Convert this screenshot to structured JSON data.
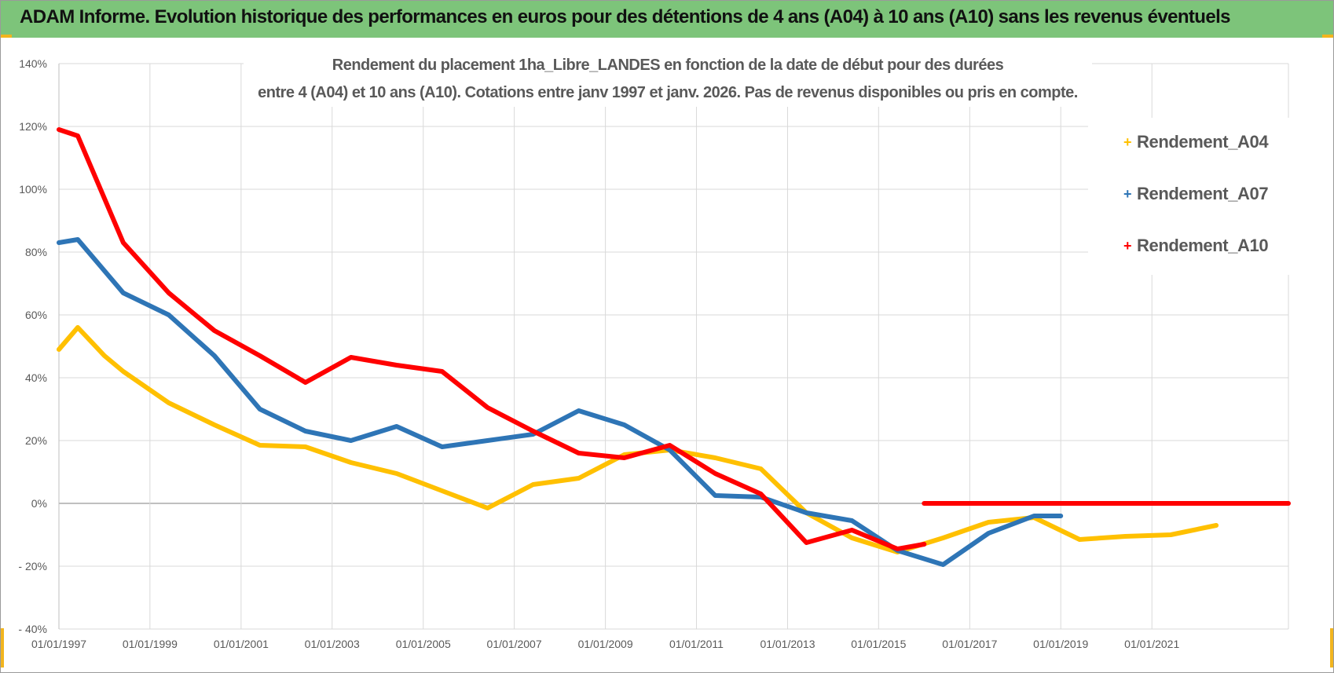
{
  "banner": {
    "title": "ADAM Informe. Evolution historique des performances en euros pour des détentions de 4 ans (A04) à 10 ans (A10) sans les revenus éventuels",
    "color": "#7dc47a"
  },
  "chart_data": {
    "type": "line",
    "title_lines": [
      "Rendement du placement 1ha_Libre_LANDES en fonction de la date de début pour des durées",
      "entre 4 (A04) et 10 ans (A10).  Cotations entre janv 1997 et janv. 2026. Pas de revenus disponibles ou pris en compte."
    ],
    "x_axis": {
      "type": "date",
      "range": [
        "1997-01-01",
        "2024-01-01"
      ],
      "tick_labels": [
        "01/01/1997",
        "01/01/1999",
        "01/01/2001",
        "01/01/2003",
        "01/01/2005",
        "01/01/2007",
        "01/01/2009",
        "01/01/2011",
        "01/01/2013",
        "01/01/2015",
        "01/01/2017",
        "01/01/2019",
        "01/01/2021"
      ]
    },
    "y_axis": {
      "range": [
        -40,
        140
      ],
      "unit": "%",
      "tick_values": [
        -40,
        -20,
        0,
        20,
        40,
        60,
        80,
        100,
        120,
        140
      ],
      "tick_labels": [
        "- 40%",
        "- 20%",
        "0%",
        "20%",
        "40%",
        "60%",
        "80%",
        "100%",
        "120%",
        "140%"
      ]
    },
    "grid": true,
    "legend_position": "right",
    "series": [
      {
        "name": "Rendement_A04",
        "color": "#ffc000",
        "points": [
          [
            "1997-01-01",
            49
          ],
          [
            "1997-06-01",
            56
          ],
          [
            "1998-01-01",
            47
          ],
          [
            "1998-06-01",
            42
          ],
          [
            "1999-06-01",
            32
          ],
          [
            "2000-06-01",
            25
          ],
          [
            "2001-06-01",
            18.5
          ],
          [
            "2002-06-01",
            18
          ],
          [
            "2003-06-01",
            13
          ],
          [
            "2004-06-01",
            9.5
          ],
          [
            "2005-06-01",
            4
          ],
          [
            "2006-06-01",
            -1.5
          ],
          [
            "2007-06-01",
            6
          ],
          [
            "2008-06-01",
            8
          ],
          [
            "2009-06-01",
            15.5
          ],
          [
            "2010-06-01",
            17
          ],
          [
            "2011-06-01",
            14.5
          ],
          [
            "2012-06-01",
            11
          ],
          [
            "2013-06-01",
            -3
          ],
          [
            "2014-06-01",
            -11
          ],
          [
            "2015-06-01",
            -15.5
          ],
          [
            "2016-06-01",
            -11
          ],
          [
            "2017-06-01",
            -6
          ],
          [
            "2018-06-01",
            -4.5
          ],
          [
            "2019-06-01",
            -11.5
          ],
          [
            "2020-06-01",
            -10.5
          ],
          [
            "2021-06-01",
            -10
          ],
          [
            "2022-06-01",
            -7
          ]
        ]
      },
      {
        "name": "Rendement_A07",
        "color": "#2e75b6",
        "points": [
          [
            "1997-01-01",
            83
          ],
          [
            "1997-06-01",
            84
          ],
          [
            "1998-06-01",
            67
          ],
          [
            "1999-06-01",
            60
          ],
          [
            "2000-06-01",
            47
          ],
          [
            "2001-06-01",
            30
          ],
          [
            "2002-06-01",
            23
          ],
          [
            "2003-06-01",
            20
          ],
          [
            "2004-06-01",
            24.5
          ],
          [
            "2005-06-01",
            18
          ],
          [
            "2006-06-01",
            20
          ],
          [
            "2007-06-01",
            22
          ],
          [
            "2008-06-01",
            29.5
          ],
          [
            "2009-06-01",
            25
          ],
          [
            "2010-06-01",
            17
          ],
          [
            "2011-06-01",
            2.5
          ],
          [
            "2012-06-01",
            2
          ],
          [
            "2013-06-01",
            -3
          ],
          [
            "2014-06-01",
            -5.5
          ],
          [
            "2015-06-01",
            -15
          ],
          [
            "2016-06-01",
            -19.5
          ],
          [
            "2017-06-01",
            -9.5
          ],
          [
            "2018-06-01",
            -4
          ],
          [
            "2019-01-01",
            -4
          ]
        ]
      },
      {
        "name": "Rendement_A10",
        "color": "#ff0000",
        "points": [
          [
            "1997-01-01",
            119
          ],
          [
            "1997-06-01",
            117
          ],
          [
            "1998-06-01",
            83
          ],
          [
            "1999-06-01",
            67
          ],
          [
            "2000-06-01",
            55
          ],
          [
            "2001-06-01",
            47
          ],
          [
            "2002-06-01",
            38.5
          ],
          [
            "2003-06-01",
            46.5
          ],
          [
            "2004-06-01",
            44
          ],
          [
            "2005-06-01",
            42
          ],
          [
            "2006-06-01",
            30.5
          ],
          [
            "2007-06-01",
            23
          ],
          [
            "2008-06-01",
            16
          ],
          [
            "2009-06-01",
            14.5
          ],
          [
            "2010-06-01",
            18.5
          ],
          [
            "2011-06-01",
            9.5
          ],
          [
            "2012-06-01",
            3
          ],
          [
            "2013-06-01",
            -12.5
          ],
          [
            "2014-06-01",
            -8.5
          ],
          [
            "2015-06-01",
            -14.5
          ],
          [
            "2016-01-01",
            -13
          ]
        ],
        "zero_segment": [
          [
            "2016-01-01",
            0
          ],
          [
            "2024-01-01",
            0
          ]
        ]
      }
    ]
  }
}
